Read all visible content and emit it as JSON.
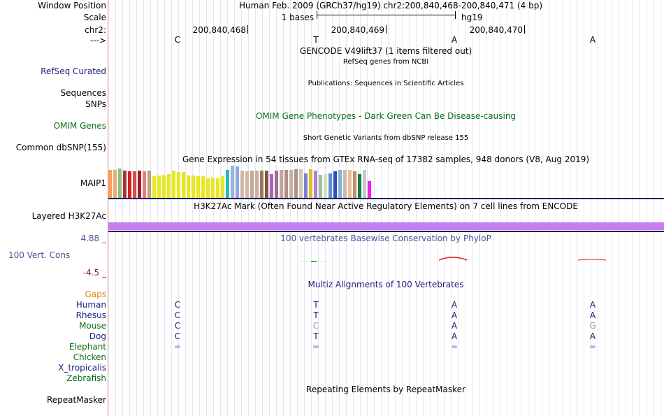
{
  "header": {
    "window_position_label": "Window Position",
    "assembly_position": "Human Feb. 2009 (GRCh37/hg19)   chr2:200,840,468-200,840,471 (4 bp)",
    "scale_label": "Scale",
    "scale_value": "1 bases",
    "scale_assembly": "hg19",
    "chrom_label": "chr2:",
    "coordinates": [
      "200,840,468",
      "200,840,469",
      "200,840,470"
    ],
    "strand_label": "--->"
  },
  "sequence": [
    "C",
    "T",
    "A",
    "A"
  ],
  "tracks": {
    "gencode_title": "GENCODE V49lift37 (1 items filtered out)",
    "refseq_subtitle": "RefSeq genes from NCBI",
    "refseq_label": "RefSeq Curated",
    "publications_title": "Publications: Sequences in Scientific Articles",
    "sequences_label": "Sequences",
    "snps_label": "SNPs",
    "omim_title": "OMIM Gene Phenotypes - Dark Green Can Be Disease-causing",
    "omim_label": "OMIM Genes",
    "dbsnp_title": "Short Genetic Variants from dbSNP release 155",
    "dbsnp_label": "Common dbSNP(155)",
    "gtex_title": "Gene Expression in 54 tissues from GTEx RNA-seq of 17382 samples, 948 donors (V8, Aug 2019)",
    "gtex_label": "MAIP1",
    "h3k27ac_title": "H3K27Ac Mark (Often Found Near Active Regulatory Elements) on 7 cell lines from ENCODE",
    "h3k27ac_label": "Layered H3K27Ac",
    "phylop_max": "4.88 _",
    "phylop_title": "100 vertebrates Basewise Conservation by PhyloP",
    "phylop_label": "100 Vert. Cons",
    "phylop_min": "-4.5 _",
    "gaps_label": "Gaps",
    "multiz_title": "Multiz Alignments of 100 Vertebrates",
    "repeat_title": "Repeating Elements by RepeatMasker",
    "repeat_label": "RepeatMasker"
  },
  "alignment": [
    {
      "species": "Human",
      "bases": [
        "C",
        "T",
        "A",
        "A"
      ]
    },
    {
      "species": "Rhesus",
      "bases": [
        "C",
        "T",
        "A",
        "A"
      ]
    },
    {
      "species": "Mouse",
      "bases": [
        "C",
        "C",
        "A",
        "G"
      ]
    },
    {
      "species": "Dog",
      "bases": [
        "C",
        "T",
        "A",
        "A"
      ]
    },
    {
      "species": "Elephant",
      "bases": [
        "=",
        "=",
        "=",
        "="
      ]
    },
    {
      "species": "Chicken",
      "bases": [
        "",
        "",
        "",
        ""
      ]
    },
    {
      "species": "X_tropicalis",
      "bases": [
        "",
        "",
        "",
        ""
      ]
    },
    {
      "species": "Zebrafish",
      "bases": [
        "",
        "",
        "",
        ""
      ]
    }
  ],
  "colors": {
    "track_label_blue": "#202080",
    "omim_green": "#0a6e14",
    "gaps_orange": "#e08c00",
    "phylop_blue": "#505098",
    "phylop_min_red": "#8b2020",
    "h3k27ac_purple": "#c57ff0"
  },
  "gtex_values": [
    0.85,
    0.85,
    0.9,
    0.82,
    0.8,
    0.8,
    0.82,
    0.8,
    0.82,
    0.65,
    0.68,
    0.7,
    0.72,
    0.82,
    0.78,
    0.78,
    0.68,
    0.68,
    0.65,
    0.65,
    0.6,
    0.62,
    0.6,
    0.65,
    0.85,
    0.98,
    0.95,
    0.82,
    0.8,
    0.82,
    0.82,
    0.82,
    0.82,
    0.72,
    0.82,
    0.85,
    0.85,
    0.85,
    0.88,
    0.88,
    0.75,
    0.88,
    0.82,
    0.7,
    0.72,
    0.75,
    0.8,
    0.85,
    0.85,
    0.85,
    0.8,
    0.72,
    0.85,
    0.52
  ],
  "gtex_colors": [
    "#f0a060",
    "#e8b070",
    "#8fbc8f",
    "#b03030",
    "#cc2222",
    "#d45050",
    "#a02020",
    "#e08080",
    "#c0a080",
    "#e8e820",
    "#e8e820",
    "#e8e820",
    "#e8e820",
    "#e8e820",
    "#e8e820",
    "#e8e820",
    "#e8e820",
    "#e8e820",
    "#e8e820",
    "#e8e820",
    "#e8e820",
    "#e8e820",
    "#e8e820",
    "#e8e820",
    "#20c0c0",
    "#a0b0e0",
    "#8fa8e0",
    "#d0b8a8",
    "#d0b8a8",
    "#c8a890",
    "#c8b0a0",
    "#9a7a5a",
    "#7a5a3a",
    "#b060c0",
    "#a07090",
    "#c0a898",
    "#b09080",
    "#c8b098",
    "#b09090",
    "#d0c8b0",
    "#8080d0",
    "#e0c020",
    "#b080d0",
    "#a0c0a0",
    "#d0e0c0",
    "#6090d0",
    "#3050b0",
    "#80b0e0",
    "#d0b8a8",
    "#e0c0a0",
    "#c09070",
    "#108040",
    "#c8c8c8",
    "#f020f0"
  ]
}
